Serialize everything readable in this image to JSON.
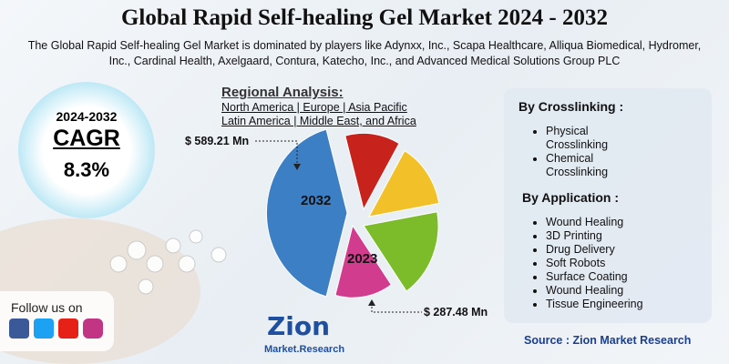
{
  "header": {
    "title": "Global Rapid Self-healing Gel Market 2024 - 2032",
    "subtitle": "The Global Rapid Self-healing Gel Market is dominated by players like Adynxx, Inc., Scapa Healthcare, Alliqua Biomedical, Hydromer, Inc., Cardinal Health, Axelgaard, Contura, Katecho, Inc., and Advanced Medical Solutions Group PLC"
  },
  "cagr": {
    "period": "2024-2032",
    "label": "CAGR",
    "value": "8.3%"
  },
  "regional": {
    "heading": "Regional Analysis:",
    "lines": [
      "North America | Europe | Asia Pacific",
      "Latin America | Middle East, and Africa"
    ]
  },
  "pie": {
    "label_2032": "2032",
    "label_2023": "2023",
    "callout_2032": "$ 589.21 Mn",
    "callout_2023": "$ 287.48 Mn"
  },
  "segments": [
    {
      "heading": "By Crosslinking :",
      "items": [
        "Physical Crosslinking",
        "Chemical Crosslinking"
      ]
    },
    {
      "heading": "By Application :",
      "items": [
        "Wound Healing",
        "3D Printing",
        "Drug Delivery",
        "Soft Robots",
        "Surface Coating",
        "Wound Healing",
        "Tissue Engineering"
      ]
    }
  ],
  "social": {
    "label": "Follow us on"
  },
  "logo": {
    "name": "Zion",
    "tagline": "Market.Research"
  },
  "source": "Source : Zion Market Research"
}
